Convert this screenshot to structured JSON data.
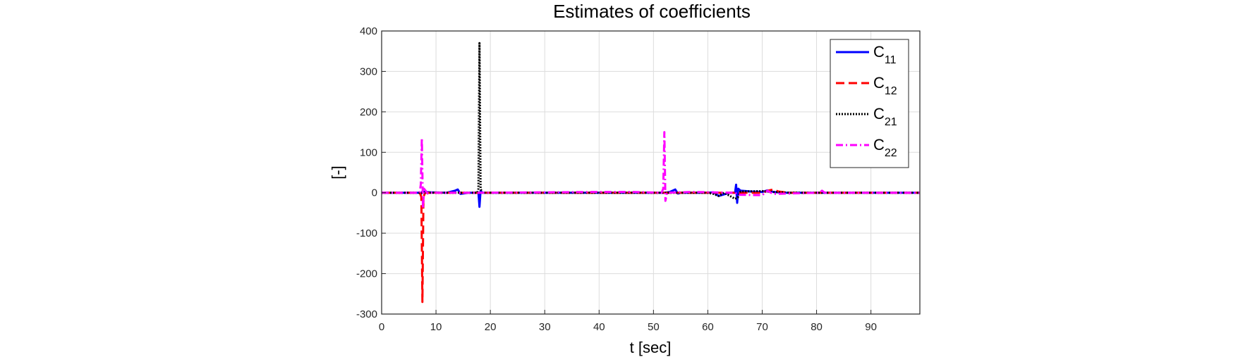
{
  "chart_data": {
    "type": "line",
    "title": "Estimates of coefficients",
    "xlabel": "t [sec]",
    "ylabel": "[-]",
    "xlim": [
      0,
      99
    ],
    "ylim": [
      -300,
      400
    ],
    "xticks": [
      0,
      10,
      20,
      30,
      40,
      50,
      60,
      70,
      80,
      90
    ],
    "yticks": [
      -300,
      -200,
      -100,
      0,
      100,
      200,
      300,
      400
    ],
    "grid": true,
    "legend": {
      "placement": "top-right"
    },
    "series": [
      {
        "name": "C11",
        "label_base": "C",
        "label_sub": "11",
        "color": "#0000ff",
        "style": "solid",
        "x": [
          0,
          7,
          7.3,
          7.5,
          8,
          9,
          12,
          13.5,
          14,
          14.5,
          16,
          17.8,
          18,
          18.2,
          18.5,
          20,
          30,
          40,
          45,
          50,
          52,
          53,
          54,
          54.5,
          55,
          60,
          61,
          62,
          64,
          65,
          65.2,
          65.4,
          65.6,
          66,
          68,
          70,
          71,
          72,
          74,
          80,
          90,
          99
        ],
        "y": [
          0,
          0,
          -2,
          3,
          2,
          1,
          0,
          5,
          8,
          -3,
          0,
          0,
          -35,
          5,
          0,
          0,
          0,
          0,
          0,
          0,
          0,
          2,
          8,
          -2,
          0,
          0,
          1,
          -8,
          0,
          0,
          20,
          -25,
          10,
          5,
          3,
          2,
          6,
          2,
          0,
          0,
          0,
          0
        ]
      },
      {
        "name": "C12",
        "label_base": "C",
        "label_sub": "12",
        "color": "#ff0000",
        "style": "dashed",
        "x": [
          0,
          7,
          7.3,
          7.5,
          7.7,
          8,
          10,
          18,
          30,
          52,
          60,
          65,
          70,
          71,
          72,
          73,
          75,
          80,
          90,
          99
        ],
        "y": [
          0,
          0,
          -10,
          -270,
          -10,
          0,
          0,
          0,
          0,
          0,
          0,
          0,
          0,
          5,
          8,
          3,
          0,
          0,
          0,
          0
        ]
      },
      {
        "name": "C21",
        "label_base": "C",
        "label_sub": "21",
        "color": "#000000",
        "style": "dotted",
        "x": [
          0,
          10,
          17.6,
          17.8,
          18,
          18.2,
          18.5,
          20,
          30,
          40,
          52,
          60,
          61,
          62,
          63,
          65,
          65.5,
          66,
          70,
          72,
          75,
          80,
          90,
          99
        ],
        "y": [
          0,
          0,
          0,
          10,
          370,
          10,
          0,
          0,
          0,
          0,
          0,
          0,
          -3,
          -8,
          0,
          -15,
          -12,
          3,
          4,
          2,
          0,
          0,
          0,
          0
        ]
      },
      {
        "name": "C22",
        "label_base": "C",
        "label_sub": "22",
        "color": "#ff00ff",
        "style": "dashdot",
        "x": [
          0,
          7,
          7.2,
          7.4,
          7.6,
          7.8,
          8.5,
          9,
          15,
          18,
          40,
          46,
          51.5,
          51.8,
          52,
          52.2,
          52.5,
          57,
          65,
          65.5,
          70,
          71,
          72,
          80.5,
          81,
          81.5,
          90,
          99
        ],
        "y": [
          0,
          0,
          20,
          135,
          -40,
          10,
          -2,
          0,
          0,
          0,
          2,
          2,
          0,
          10,
          150,
          -20,
          0,
          2,
          0,
          -5,
          -6,
          5,
          -3,
          0,
          5,
          0,
          0,
          0
        ]
      }
    ]
  }
}
